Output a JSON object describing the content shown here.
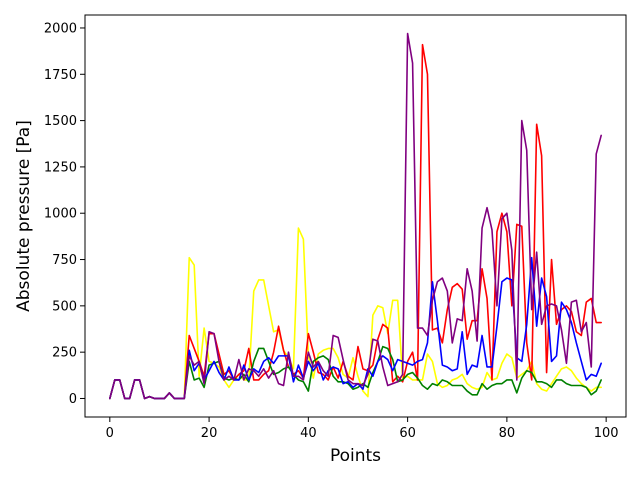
{
  "chart_data": {
    "type": "line",
    "title": "",
    "xlabel": "Points",
    "ylabel": "Absolute pressure [Pa]",
    "xlim": [
      -5,
      104
    ],
    "ylim": [
      -100,
      2070
    ],
    "xticks": [
      0,
      20,
      40,
      60,
      80,
      100
    ],
    "yticks": [
      0,
      250,
      500,
      750,
      1000,
      1250,
      1500,
      1750,
      2000
    ],
    "grid": false,
    "legend": "none",
    "series_order": [
      "yellow",
      "red",
      "green",
      "blue",
      "purple"
    ],
    "series": [
      {
        "color": "#ffff00",
        "values": [
          0,
          100,
          100,
          0,
          0,
          100,
          100,
          0,
          10,
          0,
          0,
          0,
          30,
          0,
          0,
          0,
          760,
          720,
          120,
          380,
          200,
          190,
          170,
          100,
          60,
          100,
          130,
          100,
          100,
          580,
          640,
          640,
          500,
          360,
          370,
          260,
          220,
          160,
          920,
          860,
          230,
          110,
          240,
          260,
          270,
          270,
          220,
          130,
          110,
          220,
          120,
          40,
          10,
          450,
          500,
          490,
          350,
          530,
          530,
          110,
          120,
          100,
          100,
          100,
          240,
          200,
          80,
          60,
          70,
          100,
          110,
          130,
          80,
          60,
          50,
          60,
          140,
          100,
          110,
          190,
          240,
          220,
          110,
          130,
          150,
          200,
          80,
          50,
          40,
          80,
          120,
          160,
          170,
          150,
          110,
          80,
          60,
          40,
          60,
          60
        ]
      },
      {
        "color": "#ff0000",
        "values": [
          0,
          100,
          100,
          0,
          0,
          100,
          100,
          0,
          10,
          0,
          0,
          0,
          30,
          0,
          0,
          0,
          340,
          270,
          200,
          120,
          350,
          350,
          240,
          130,
          150,
          100,
          130,
          150,
          270,
          100,
          100,
          130,
          150,
          250,
          390,
          260,
          170,
          130,
          150,
          110,
          350,
          250,
          140,
          130,
          100,
          170,
          110,
          200,
          120,
          100,
          280,
          160,
          150,
          180,
          320,
          400,
          380,
          90,
          120,
          90,
          200,
          250,
          100,
          1910,
          1750,
          370,
          380,
          300,
          480,
          600,
          620,
          590,
          320,
          420,
          420,
          700,
          540,
          100,
          900,
          1000,
          900,
          500,
          940,
          930,
          300,
          100,
          1480,
          1310,
          140,
          750,
          400,
          480,
          500,
          470,
          360,
          340,
          520,
          540,
          410,
          410
        ]
      },
      {
        "color": "#008000",
        "values": [
          0,
          100,
          100,
          0,
          0,
          100,
          100,
          0,
          10,
          0,
          0,
          0,
          30,
          0,
          0,
          0,
          200,
          100,
          110,
          60,
          180,
          190,
          200,
          110,
          100,
          110,
          100,
          130,
          90,
          200,
          270,
          270,
          200,
          130,
          140,
          160,
          170,
          130,
          100,
          90,
          40,
          200,
          220,
          230,
          210,
          120,
          90,
          90,
          80,
          50,
          60,
          80,
          60,
          140,
          200,
          280,
          270,
          210,
          90,
          100,
          130,
          140,
          110,
          70,
          50,
          80,
          70,
          100,
          90,
          70,
          70,
          70,
          40,
          20,
          20,
          80,
          50,
          70,
          80,
          80,
          100,
          100,
          30,
          110,
          150,
          140,
          90,
          90,
          80,
          60,
          100,
          100,
          80,
          70,
          70,
          70,
          60,
          20,
          40,
          100
        ]
      },
      {
        "color": "#0000ff",
        "values": [
          0,
          100,
          100,
          0,
          0,
          100,
          100,
          0,
          10,
          0,
          0,
          0,
          30,
          0,
          0,
          0,
          260,
          150,
          190,
          100,
          150,
          200,
          140,
          100,
          170,
          100,
          100,
          180,
          100,
          160,
          140,
          200,
          220,
          190,
          230,
          230,
          230,
          90,
          180,
          110,
          200,
          150,
          190,
          100,
          150,
          170,
          160,
          80,
          90,
          60,
          80,
          50,
          160,
          120,
          200,
          230,
          210,
          150,
          210,
          200,
          190,
          180,
          200,
          210,
          300,
          630,
          420,
          180,
          170,
          150,
          160,
          360,
          130,
          180,
          170,
          340,
          170,
          170,
          390,
          630,
          650,
          640,
          220,
          200,
          400,
          760,
          390,
          650,
          550,
          200,
          230,
          520,
          480,
          410,
          300,
          200,
          100,
          130,
          120,
          190
        ]
      },
      {
        "color": "#800080",
        "values": [
          0,
          100,
          100,
          0,
          0,
          100,
          100,
          0,
          10,
          0,
          0,
          0,
          30,
          0,
          0,
          0,
          230,
          180,
          200,
          80,
          360,
          350,
          200,
          100,
          120,
          100,
          210,
          100,
          160,
          150,
          120,
          160,
          110,
          150,
          80,
          70,
          250,
          120,
          120,
          100,
          250,
          170,
          200,
          150,
          120,
          340,
          330,
          210,
          100,
          80,
          80,
          70,
          130,
          320,
          310,
          170,
          70,
          80,
          90,
          130,
          1970,
          1810,
          380,
          380,
          340,
          530,
          630,
          650,
          580,
          300,
          430,
          420,
          700,
          580,
          310,
          920,
          1030,
          910,
          500,
          970,
          1000,
          800,
          100,
          1500,
          1340,
          480,
          790,
          400,
          500,
          510,
          500,
          370,
          190,
          520,
          530,
          360,
          410,
          170,
          1320,
          1420
        ]
      }
    ]
  }
}
